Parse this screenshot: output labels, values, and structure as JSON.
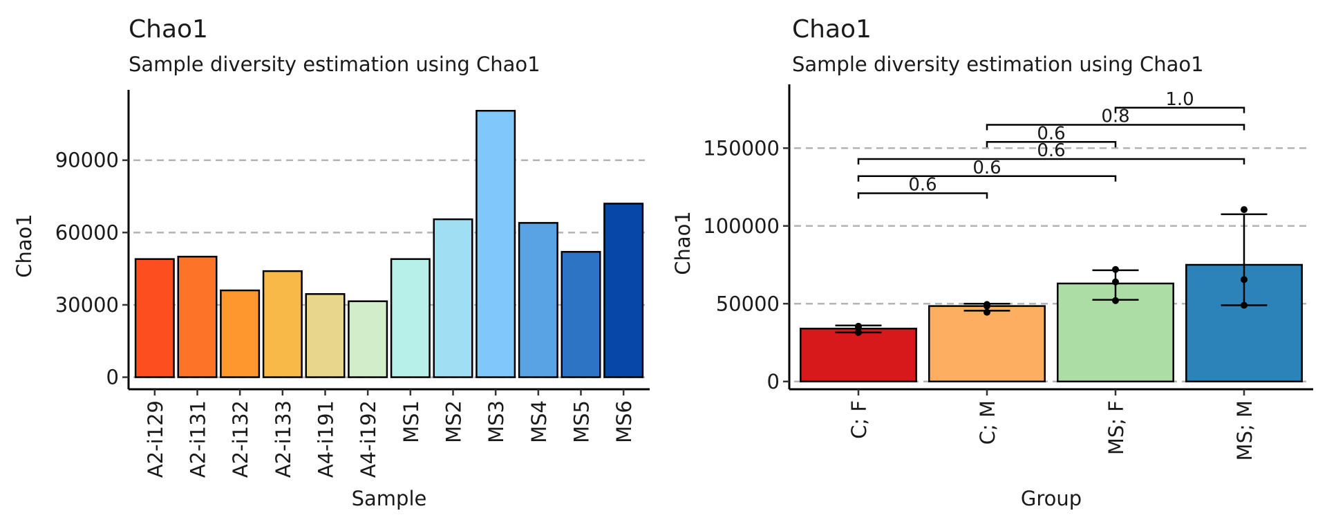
{
  "chart_data": [
    {
      "type": "bar",
      "title": "Chao1",
      "subtitle": "Sample diversity estimation using Chao1",
      "xlabel": "Sample",
      "ylabel": "Chao1",
      "ylim": [
        -5000,
        114000
      ],
      "yticks": [
        0,
        30000,
        60000,
        90000
      ],
      "grid": "horizontal dashed at y ticks",
      "categories": [
        "A2-i129",
        "A2-i131",
        "A2-i132",
        "A2-i133",
        "A4-i191",
        "A4-i192",
        "MS1",
        "MS2",
        "MS3",
        "MS4",
        "MS5",
        "MS6"
      ],
      "values": [
        49000,
        50000,
        36000,
        44000,
        34500,
        31500,
        49000,
        65500,
        110500,
        64000,
        52000,
        72000
      ],
      "colors": [
        "#fc4e1e",
        "#fd7328",
        "#fe982e",
        "#f8b946",
        "#e8d68a",
        "#d2edc9",
        "#b7efe9",
        "#9fdef3",
        "#80c7fc",
        "#59a2e4",
        "#2d74c5",
        "#0548a6"
      ]
    },
    {
      "type": "bar",
      "title": "Chao1",
      "subtitle": "Sample diversity estimation using Chao1",
      "xlabel": "Group",
      "ylabel": "Chao1",
      "ylim": [
        -5000,
        183000
      ],
      "yticks": [
        0,
        50000,
        100000,
        150000
      ],
      "grid": "horizontal dashed at y ticks",
      "categories": [
        "C; F",
        "C; M",
        "MS; F",
        "MS; M"
      ],
      "values": [
        34000,
        48500,
        63000,
        75000
      ],
      "colors": [
        "#d7191c",
        "#fdae61",
        "#abdda4",
        "#2b83ba"
      ],
      "error_bars": [
        {
          "low": 31500,
          "high": 36000
        },
        {
          "low": 45500,
          "high": 50000
        },
        {
          "low": 52500,
          "high": 71500
        },
        {
          "low": 49000,
          "high": 107500
        }
      ],
      "points": [
        [
          31500,
          34500,
          35500
        ],
        [
          44500,
          48500,
          49500
        ],
        [
          52000,
          64000,
          72000
        ],
        [
          49000,
          65500,
          110500
        ]
      ],
      "significance": [
        {
          "from": 0,
          "to": 1,
          "label": "0.6",
          "y": 121000
        },
        {
          "from": 0,
          "to": 2,
          "label": "0.6",
          "y": 132000
        },
        {
          "from": 0,
          "to": 3,
          "label": "0.6",
          "y": 143000
        },
        {
          "from": 1,
          "to": 2,
          "label": "0.6",
          "y": 154000
        },
        {
          "from": 1,
          "to": 3,
          "label": "0.8",
          "y": 165000
        },
        {
          "from": 2,
          "to": 3,
          "label": "1.0",
          "y": 176000
        }
      ]
    }
  ]
}
